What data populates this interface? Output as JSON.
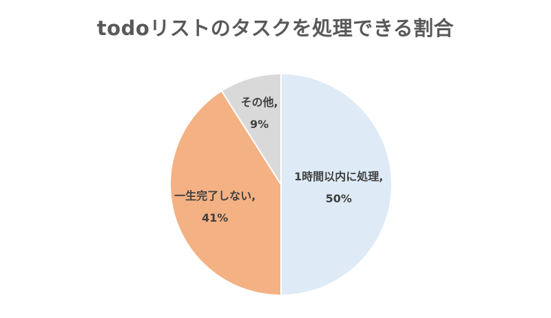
{
  "chart_data": {
    "type": "pie",
    "title": "todoリストのタスクを処理できる割合",
    "slices": [
      {
        "label": "1時間以内に処理,",
        "value": 50,
        "value_label": "50%",
        "color": "#DEEAF6"
      },
      {
        "label": "一生完了しない,",
        "value": 41,
        "value_label": "41%",
        "color": "#F4B183"
      },
      {
        "label": "その他,",
        "value": 9,
        "value_label": "9%",
        "color": "#D9D9D9"
      }
    ],
    "start_angle": "top",
    "direction": "clockwise",
    "legend": "none"
  }
}
